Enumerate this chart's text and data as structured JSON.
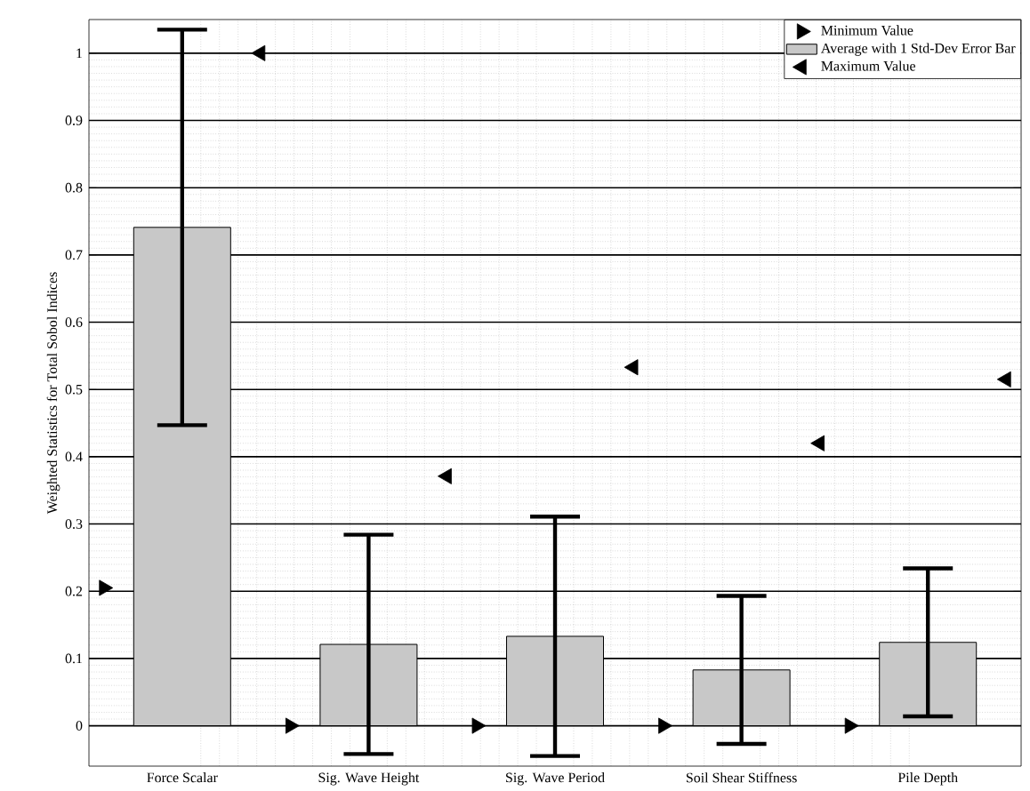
{
  "chart_data": {
    "type": "bar",
    "ylabel": "Weighted Statistics for Total Sobol Indices",
    "categories": [
      "Force Scalar",
      "Sig. Wave Height",
      "Sig. Wave Period",
      "Soil Shear Stiffness",
      "Pile Depth"
    ],
    "series": [
      {
        "name": "Minimum Value",
        "type": "scatter",
        "color": "#000000",
        "values": [
          0.205,
          0,
          0,
          0,
          0
        ]
      },
      {
        "name": "Average with 1 Std-Dev Error Bar",
        "color": "#c8c8c8",
        "values": [
          0.741,
          0.121,
          0.133,
          0.083,
          0.124
        ],
        "errors": [
          0.294,
          0.163,
          0.178,
          0.11,
          0.11
        ]
      },
      {
        "name": "Maximum Value",
        "type": "scatter",
        "color": "#000000",
        "values": [
          1.0,
          0.371,
          0.533,
          0.42,
          0.515
        ]
      }
    ],
    "ylim": [
      -0.06,
      1.05
    ],
    "yticks": [
      0,
      0.1,
      0.2,
      0.3,
      0.4,
      0.5,
      0.6,
      0.7,
      0.8,
      0.9,
      1
    ],
    "grid": "y",
    "legend": "top right",
    "marker": "triangle"
  }
}
